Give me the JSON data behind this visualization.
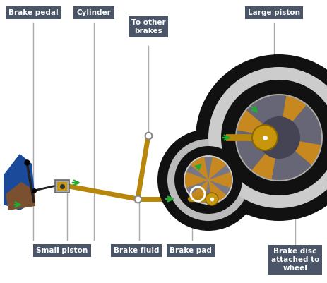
{
  "bg_color": "#ffffff",
  "label_bg": "#4a5568",
  "label_text_color": "#ffffff",
  "arrow_color": "#22aa33",
  "pipe_color": "#b8860b",
  "dark_pipe": "#8a6400",
  "connector_color": "#999999",
  "wheel_black": "#111111",
  "wheel_gray": "#c8c8c8",
  "wheel_darkgray": "#555560",
  "piston_color": "#c8960a",
  "brake_pad_color": "#777788",
  "caliper_color": "#c88820",
  "blue_leg": "#1a4a99",
  "brown_shoe": "#7a5030",
  "dark_lever": "#222222",
  "figsize": [
    4.64,
    4.01
  ],
  "dpi": 100,
  "labels": {
    "brake_pedal": "Brake pedal",
    "cylinder": "Cylinder",
    "to_other_brakes": "To other\nbrakes",
    "large_piston": "Large piston",
    "small_piston": "Small piston",
    "brake_fluid": "Brake fluid",
    "brake_pad": "Brake pad",
    "brake_disc": "Brake disc\nattached to\nwheel"
  }
}
